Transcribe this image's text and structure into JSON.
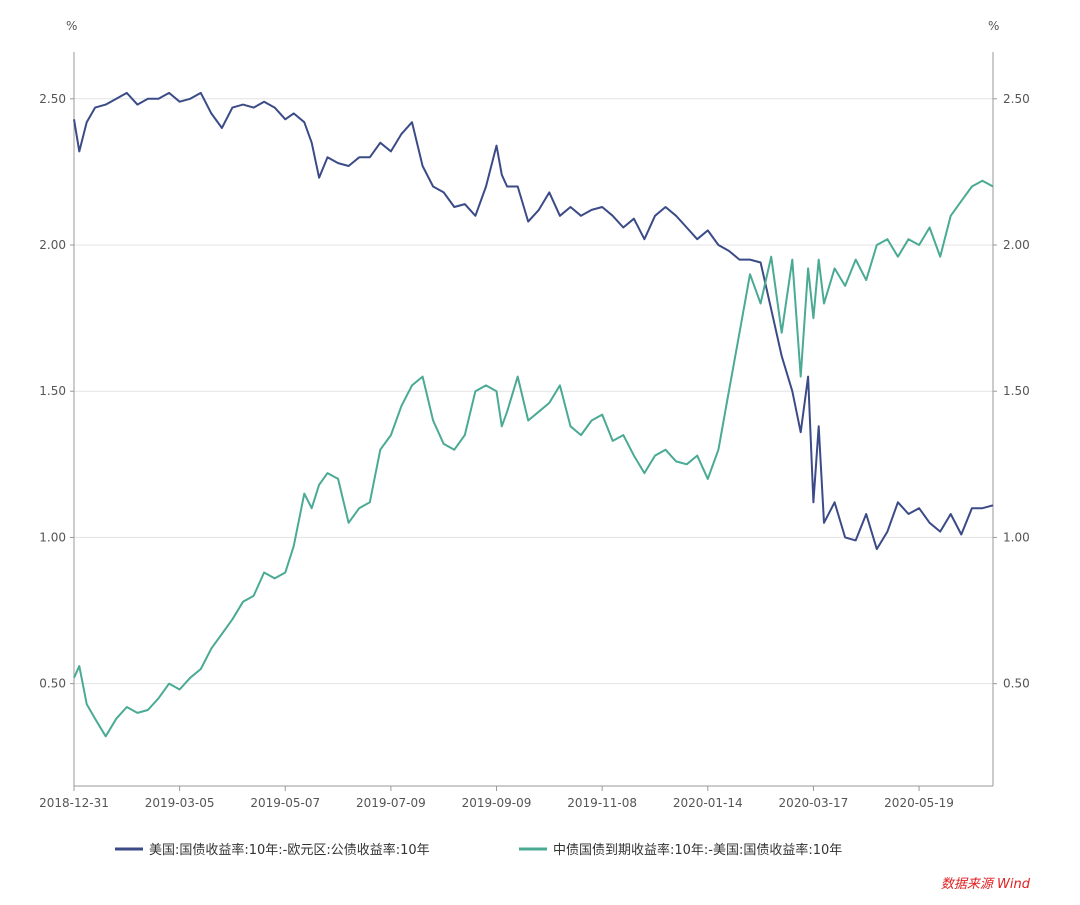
{
  "chart_data": {
    "type": "line",
    "title": "",
    "left_unit": "%",
    "right_unit": "%",
    "ylim": [
      0.15,
      2.66
    ],
    "y_ticks": [
      "0.50",
      "1.00",
      "1.50",
      "2.00",
      "2.50"
    ],
    "y_tick_values": [
      0.5,
      1.0,
      1.5,
      2.0,
      2.5
    ],
    "x_ticks": [
      "2018-12-31",
      "2019-03-05",
      "2019-05-07",
      "2019-07-09",
      "2019-09-09",
      "2019-11-08",
      "2020-01-14",
      "2020-03-17",
      "2020-05-19"
    ],
    "x_tick_index": [
      0,
      1,
      2,
      3,
      4,
      5,
      6,
      7,
      8
    ],
    "xlim": [
      0,
      8.7
    ],
    "grid": "horizontal",
    "legend_position": "bottom",
    "source": "数据来源 Wind",
    "series": [
      {
        "name": "美国:国债收益率:10年:-欧元区:公债收益率:10年",
        "color": "#3b4b87",
        "x": [
          0,
          0.05,
          0.12,
          0.2,
          0.3,
          0.4,
          0.5,
          0.6,
          0.7,
          0.8,
          0.9,
          1.0,
          1.1,
          1.2,
          1.3,
          1.4,
          1.5,
          1.6,
          1.7,
          1.8,
          1.9,
          2.0,
          2.08,
          2.18,
          2.25,
          2.32,
          2.4,
          2.5,
          2.6,
          2.7,
          2.8,
          2.9,
          3.0,
          3.1,
          3.2,
          3.3,
          3.4,
          3.5,
          3.6,
          3.7,
          3.8,
          3.9,
          4.0,
          4.05,
          4.1,
          4.2,
          4.3,
          4.4,
          4.5,
          4.6,
          4.7,
          4.8,
          4.9,
          5.0,
          5.1,
          5.2,
          5.3,
          5.4,
          5.5,
          5.6,
          5.7,
          5.8,
          5.9,
          6.0,
          6.1,
          6.2,
          6.3,
          6.4,
          6.5,
          6.6,
          6.7,
          6.8,
          6.88,
          6.95,
          7.0,
          7.05,
          7.1,
          7.2,
          7.3,
          7.4,
          7.5,
          7.6,
          7.7,
          7.8,
          7.9,
          8.0,
          8.1,
          8.2,
          8.3,
          8.4,
          8.5,
          8.6,
          8.7
        ],
        "values": [
          2.43,
          2.32,
          2.42,
          2.47,
          2.48,
          2.5,
          2.52,
          2.48,
          2.5,
          2.5,
          2.52,
          2.49,
          2.5,
          2.52,
          2.45,
          2.4,
          2.47,
          2.48,
          2.47,
          2.49,
          2.47,
          2.43,
          2.45,
          2.42,
          2.35,
          2.23,
          2.3,
          2.28,
          2.27,
          2.3,
          2.3,
          2.35,
          2.32,
          2.38,
          2.42,
          2.27,
          2.2,
          2.18,
          2.13,
          2.14,
          2.1,
          2.2,
          2.34,
          2.24,
          2.2,
          2.2,
          2.08,
          2.12,
          2.18,
          2.1,
          2.13,
          2.1,
          2.12,
          2.13,
          2.1,
          2.06,
          2.09,
          2.02,
          2.1,
          2.13,
          2.1,
          2.06,
          2.02,
          2.05,
          2.0,
          1.98,
          1.95,
          1.95,
          1.94,
          1.78,
          1.62,
          1.5,
          1.36,
          1.55,
          1.12,
          1.38,
          1.05,
          1.12,
          1.0,
          0.99,
          1.08,
          0.96,
          1.02,
          1.12,
          1.08,
          1.1,
          1.05,
          1.02,
          1.08,
          1.01,
          1.1,
          1.1,
          1.11
        ]
      },
      {
        "name": "中债国债到期收益率:10年:-美国:国债收益率:10年",
        "color": "#4aaa94",
        "x": [
          0,
          0.05,
          0.12,
          0.2,
          0.3,
          0.4,
          0.5,
          0.6,
          0.7,
          0.8,
          0.9,
          1.0,
          1.1,
          1.2,
          1.3,
          1.4,
          1.5,
          1.6,
          1.7,
          1.8,
          1.9,
          2.0,
          2.08,
          2.18,
          2.25,
          2.32,
          2.4,
          2.5,
          2.6,
          2.7,
          2.8,
          2.9,
          3.0,
          3.1,
          3.2,
          3.3,
          3.4,
          3.5,
          3.6,
          3.7,
          3.8,
          3.9,
          4.0,
          4.05,
          4.1,
          4.2,
          4.3,
          4.4,
          4.5,
          4.6,
          4.7,
          4.8,
          4.9,
          5.0,
          5.1,
          5.2,
          5.3,
          5.4,
          5.5,
          5.6,
          5.7,
          5.8,
          5.9,
          6.0,
          6.1,
          6.2,
          6.3,
          6.4,
          6.5,
          6.6,
          6.7,
          6.8,
          6.88,
          6.95,
          7.0,
          7.05,
          7.1,
          7.2,
          7.3,
          7.4,
          7.5,
          7.6,
          7.7,
          7.8,
          7.9,
          8.0,
          8.1,
          8.2,
          8.3,
          8.4,
          8.5,
          8.6,
          8.7
        ],
        "values": [
          0.52,
          0.56,
          0.43,
          0.38,
          0.32,
          0.38,
          0.42,
          0.4,
          0.41,
          0.45,
          0.5,
          0.48,
          0.52,
          0.55,
          0.62,
          0.67,
          0.72,
          0.78,
          0.8,
          0.88,
          0.86,
          0.88,
          0.97,
          1.15,
          1.1,
          1.18,
          1.22,
          1.2,
          1.05,
          1.1,
          1.12,
          1.3,
          1.35,
          1.45,
          1.52,
          1.55,
          1.4,
          1.32,
          1.3,
          1.35,
          1.5,
          1.52,
          1.5,
          1.38,
          1.43,
          1.55,
          1.4,
          1.43,
          1.46,
          1.52,
          1.38,
          1.35,
          1.4,
          1.42,
          1.33,
          1.35,
          1.28,
          1.22,
          1.28,
          1.3,
          1.26,
          1.25,
          1.28,
          1.2,
          1.3,
          1.5,
          1.7,
          1.9,
          1.8,
          1.96,
          1.7,
          1.95,
          1.55,
          1.92,
          1.75,
          1.95,
          1.8,
          1.92,
          1.86,
          1.95,
          1.88,
          2.0,
          2.02,
          1.96,
          2.02,
          2.0,
          2.06,
          1.96,
          2.1,
          2.15,
          2.2,
          2.22,
          2.2
        ]
      }
    ]
  }
}
